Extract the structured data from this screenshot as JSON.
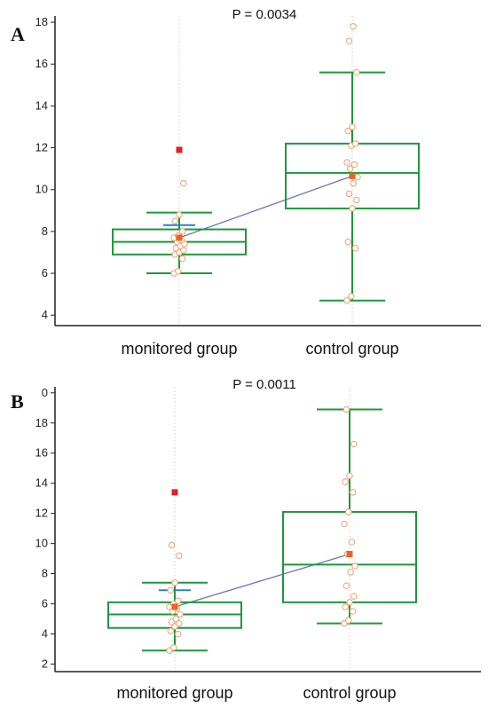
{
  "chart_data": [
    {
      "panel": "A",
      "type": "box",
      "annotation": "P = 0.0034",
      "categories": [
        "monitored group",
        "control group"
      ],
      "yticks": [
        "4",
        "6",
        "8",
        "10",
        "12",
        "14",
        "16",
        "18"
      ],
      "ylim": [
        3.5,
        18.3
      ],
      "grid": true,
      "boxes": [
        {
          "q1": 6.9,
          "median": 7.5,
          "q3": 8.1,
          "whisker_low": 6.0,
          "whisker_high": 8.9,
          "mean": 7.7,
          "ci_high": 8.3,
          "outliers": [
            11.9
          ],
          "points": [
            6.0,
            6.1,
            6.7,
            6.9,
            7.0,
            7.1,
            7.2,
            7.3,
            7.4,
            7.5,
            7.6,
            7.7,
            7.8,
            8.0,
            8.5,
            8.8,
            10.3
          ]
        },
        {
          "q1": 9.1,
          "median": 10.8,
          "q3": 12.2,
          "whisker_low": 4.7,
          "whisker_high": 15.6,
          "mean": 10.65,
          "outliers": [],
          "points": [
            4.7,
            4.9,
            7.2,
            7.5,
            9.1,
            9.5,
            9.8,
            10.3,
            10.6,
            11.0,
            11.2,
            11.3,
            12.1,
            12.2,
            12.8,
            13.0,
            15.6,
            17.1,
            17.8
          ]
        }
      ]
    },
    {
      "panel": "B",
      "type": "box",
      "annotation": "P = 0.0011",
      "categories": [
        "monitored group",
        "control group"
      ],
      "yticks": [
        "2",
        "4",
        "6",
        "8",
        "10",
        "12",
        "14",
        "16",
        "18",
        "0"
      ],
      "ylim": [
        1.5,
        20.4
      ],
      "grid": true,
      "boxes": [
        {
          "q1": 4.4,
          "median": 5.3,
          "q3": 6.1,
          "whisker_low": 2.9,
          "whisker_high": 7.4,
          "mean": 5.8,
          "ci_high": 6.9,
          "outliers": [
            13.4
          ],
          "points": [
            2.9,
            3.1,
            4.0,
            4.2,
            4.5,
            4.7,
            4.8,
            5.0,
            5.3,
            5.5,
            5.7,
            5.8,
            6.0,
            6.2,
            6.9,
            7.4,
            9.2,
            9.9
          ]
        },
        {
          "q1": 6.1,
          "median": 8.6,
          "q3": 12.1,
          "whisker_low": 4.7,
          "whisker_high": 18.9,
          "mean": 9.3,
          "outliers": [],
          "points": [
            4.7,
            4.9,
            5.5,
            5.8,
            6.1,
            6.5,
            7.2,
            8.1,
            8.5,
            9.3,
            10.1,
            11.3,
            12.1,
            13.4,
            14.1,
            14.5,
            16.6,
            18.9
          ]
        }
      ]
    }
  ],
  "colors": {
    "box": "#1a9a3a",
    "outlier": "#e0202a",
    "mean": "#f06020",
    "point": "#f0a070",
    "line": "#6a72c8",
    "ci": "#2a80c0"
  }
}
